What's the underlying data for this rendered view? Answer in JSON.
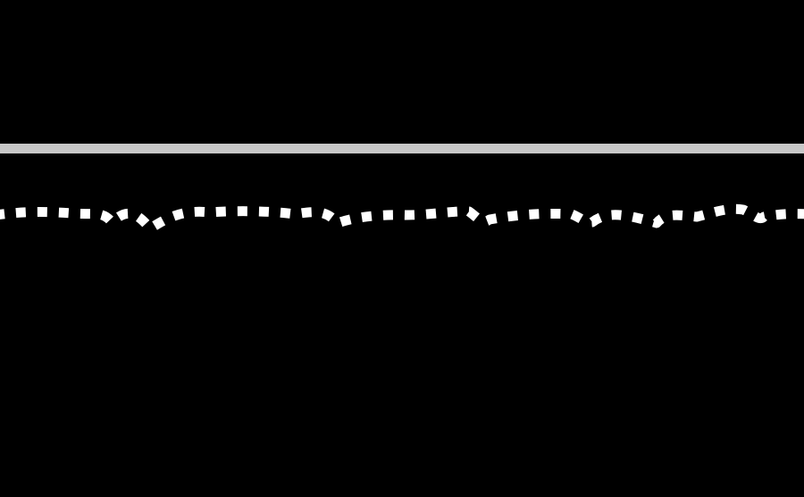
{
  "colors": {
    "background": "#000000",
    "solid_line": "#c8c8c8",
    "dashed_trace": "#ffffff"
  },
  "elements": {
    "solid_line": "horizontal-rule",
    "dashed_trace": "wavy-dotted-line"
  }
}
